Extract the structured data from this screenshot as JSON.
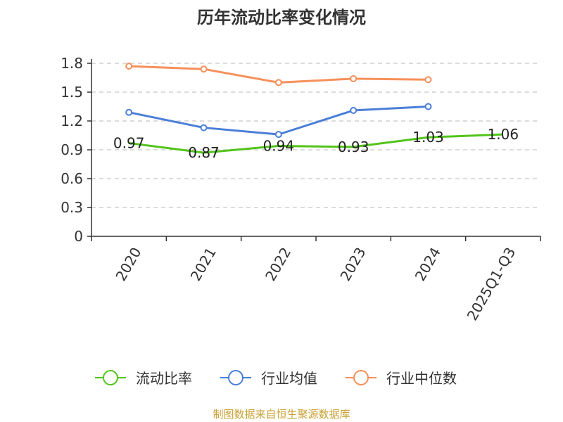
{
  "chart_data": {
    "type": "line",
    "title": "历年流动比率变化情况",
    "categories": [
      "2020",
      "2021",
      "2022",
      "2023",
      "2024",
      "2025Q1-Q3"
    ],
    "yticks": [
      "0",
      "0.3",
      "0.6",
      "0.9",
      "1.2",
      "1.5",
      "1.8"
    ],
    "ylim": [
      0,
      1.8
    ],
    "grid": true,
    "legend_position": "bottom",
    "series": [
      {
        "name": "流动比率",
        "color": "#52c41a",
        "values": [
          0.97,
          0.87,
          0.94,
          0.93,
          1.03,
          1.06
        ],
        "labels": [
          "0.97",
          "0.87",
          "0.94",
          "0.93",
          "1.03",
          "1.06"
        ],
        "markers": false
      },
      {
        "name": "行业均值",
        "color": "#4a7fd8",
        "values": [
          1.29,
          1.13,
          1.06,
          1.31,
          1.35,
          null
        ],
        "markers": true
      },
      {
        "name": "行业中位数",
        "color": "#f6905a",
        "values": [
          1.77,
          1.74,
          1.6,
          1.64,
          1.63,
          null
        ],
        "markers": true
      }
    ],
    "source": "制图数据来自恒生聚源数据库"
  }
}
